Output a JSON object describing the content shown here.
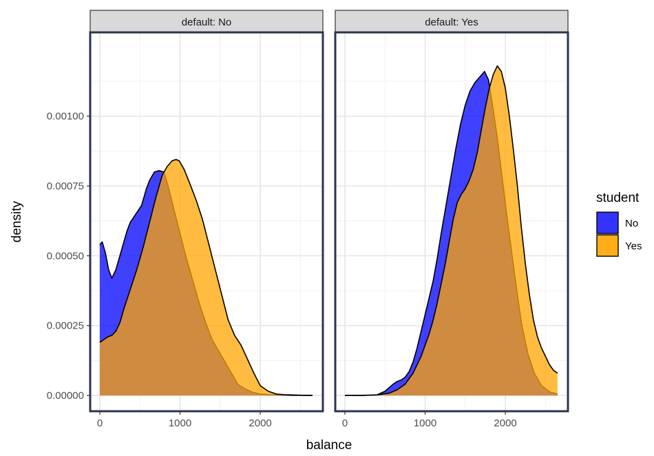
{
  "chart_data": {
    "type": "area",
    "xlabel": "balance",
    "ylabel": "density",
    "xlim": [
      -120,
      2780
    ],
    "ylim": [
      -5.65e-05,
      0.0013
    ],
    "x_ticks": [
      0,
      1000,
      2000
    ],
    "x_tick_labels": [
      "0",
      "1000",
      "2000"
    ],
    "y_ticks": [
      0,
      0.00025,
      0.0005,
      0.00075,
      0.001
    ],
    "y_tick_labels": [
      "0.00000",
      "0.00025",
      "0.00050",
      "0.00075",
      "0.00100"
    ],
    "grid": true,
    "legend": {
      "title": "student",
      "placement": "right",
      "entries": [
        {
          "label": "No",
          "color": "#3333ff"
        },
        {
          "label": "Yes",
          "color": "#ffae1a"
        }
      ]
    },
    "facets": [
      {
        "strip": "default: No",
        "series": [
          {
            "name": "No",
            "color": "#0000ff",
            "x": [
              0,
              30,
              70,
              110,
              150,
              200,
              260,
              300,
              340,
              380,
              450,
              520,
              580,
              620,
              680,
              740,
              800,
              860,
              920,
              1000,
              1080,
              1160,
              1240,
              1320,
              1400,
              1480,
              1560,
              1640,
              1720,
              1800,
              1900,
              2000,
              2100,
              2200,
              2300,
              2400,
              2500,
              2600,
              2650
            ],
            "y": [
              0.00054,
              0.00055,
              0.00051,
              0.00045,
              0.00042,
              0.00045,
              0.00051,
              0.00055,
              0.00059,
              0.00062,
              0.00065,
              0.00068,
              0.00074,
              0.00077,
              0.0008,
              0.000805,
              0.0008,
              0.00074,
              0.00067,
              0.00058,
              0.00049,
              0.00041,
              0.00033,
              0.00026,
              0.0002,
              0.00016,
              0.00012,
              8e-05,
              4e-05,
              2.5e-05,
              1.2e-05,
              5e-06,
              3e-06,
              2e-06,
              1e-06,
              5e-07,
              2e-07,
              1e-07,
              0
            ]
          },
          {
            "name": "Yes",
            "color": "#ffa500",
            "x": [
              0,
              50,
              100,
              150,
              200,
              250,
              300,
              380,
              460,
              540,
              620,
              700,
              780,
              840,
              900,
              950,
              990,
              1050,
              1120,
              1200,
              1280,
              1360,
              1440,
              1520,
              1600,
              1680,
              1760,
              1840,
              1920,
              2000,
              2100,
              2200,
              2300,
              2400,
              2500,
              2600,
              2650
            ],
            "y": [
              0.00019,
              0.0002,
              0.00021,
              0.000215,
              0.00023,
              0.00026,
              0.00031,
              0.00038,
              0.00045,
              0.00053,
              0.00062,
              0.00071,
              0.00079,
              0.00082,
              0.00084,
              0.000845,
              0.00084,
              0.00081,
              0.00076,
              0.0007,
              0.00063,
              0.00054,
              0.00045,
              0.00036,
              0.00027,
              0.000215,
              0.00018,
              0.00013,
              8e-05,
              3.5e-05,
              1.5e-05,
              5e-06,
              3e-06,
              2e-06,
              1e-06,
              5e-07,
              0
            ]
          }
        ]
      },
      {
        "strip": "default: Yes",
        "series": [
          {
            "name": "No",
            "color": "#0000ff",
            "x": [
              0,
              200,
              400,
              500,
              600,
              650,
              700,
              750,
              800,
              850,
              900,
              950,
              1000,
              1050,
              1100,
              1150,
              1200,
              1260,
              1320,
              1380,
              1440,
              1500,
              1560,
              1620,
              1680,
              1740,
              1790,
              1840,
              1900,
              1960,
              2020,
              2080,
              2140,
              2200,
              2280,
              2360,
              2450,
              2560,
              2650
            ],
            "y": [
              0,
              0,
              2e-06,
              1.5e-05,
              4e-05,
              5e-05,
              5.5e-05,
              6.5e-05,
              8.5e-05,
              0.00012,
              0.00017,
              0.00023,
              0.00029,
              0.00035,
              0.00041,
              0.00049,
              0.00058,
              0.00068,
              0.00078,
              0.00088,
              0.00097,
              0.00104,
              0.00109,
              0.00112,
              0.00114,
              0.00116,
              0.00113,
              0.00104,
              0.00092,
              0.00078,
              0.00064,
              0.00051,
              0.00038,
              0.00026,
              0.00015,
              8e-05,
              3.5e-05,
              1.2e-05,
              5e-06
            ]
          },
          {
            "name": "Yes",
            "color": "#ffa500",
            "x": [
              0,
              200,
              400,
              550,
              650,
              750,
              850,
              950,
              1050,
              1100,
              1150,
              1200,
              1250,
              1300,
              1350,
              1400,
              1450,
              1500,
              1550,
              1600,
              1650,
              1700,
              1750,
              1800,
              1850,
              1900,
              1950,
              2000,
              2050,
              2100,
              2150,
              2200,
              2250,
              2300,
              2350,
              2400,
              2450,
              2500,
              2550,
              2600,
              2650
            ],
            "y": [
              0,
              0,
              2e-06,
              8e-06,
              2e-05,
              4e-05,
              8e-05,
              0.00014,
              0.00022,
              0.00027,
              0.00033,
              0.0004,
              0.00047,
              0.00055,
              0.00063,
              0.00069,
              0.00072,
              0.00074,
              0.00077,
              0.00081,
              0.00087,
              0.00095,
              0.00103,
              0.0011,
              0.00115,
              0.00118,
              0.00116,
              0.0011,
              0.001,
              0.00088,
              0.00075,
              0.0006,
              0.00047,
              0.00036,
              0.00027,
              0.00021,
              0.00017,
              0.00014,
              0.00011,
              9e-05,
              8e-05
            ]
          }
        ]
      }
    ]
  }
}
